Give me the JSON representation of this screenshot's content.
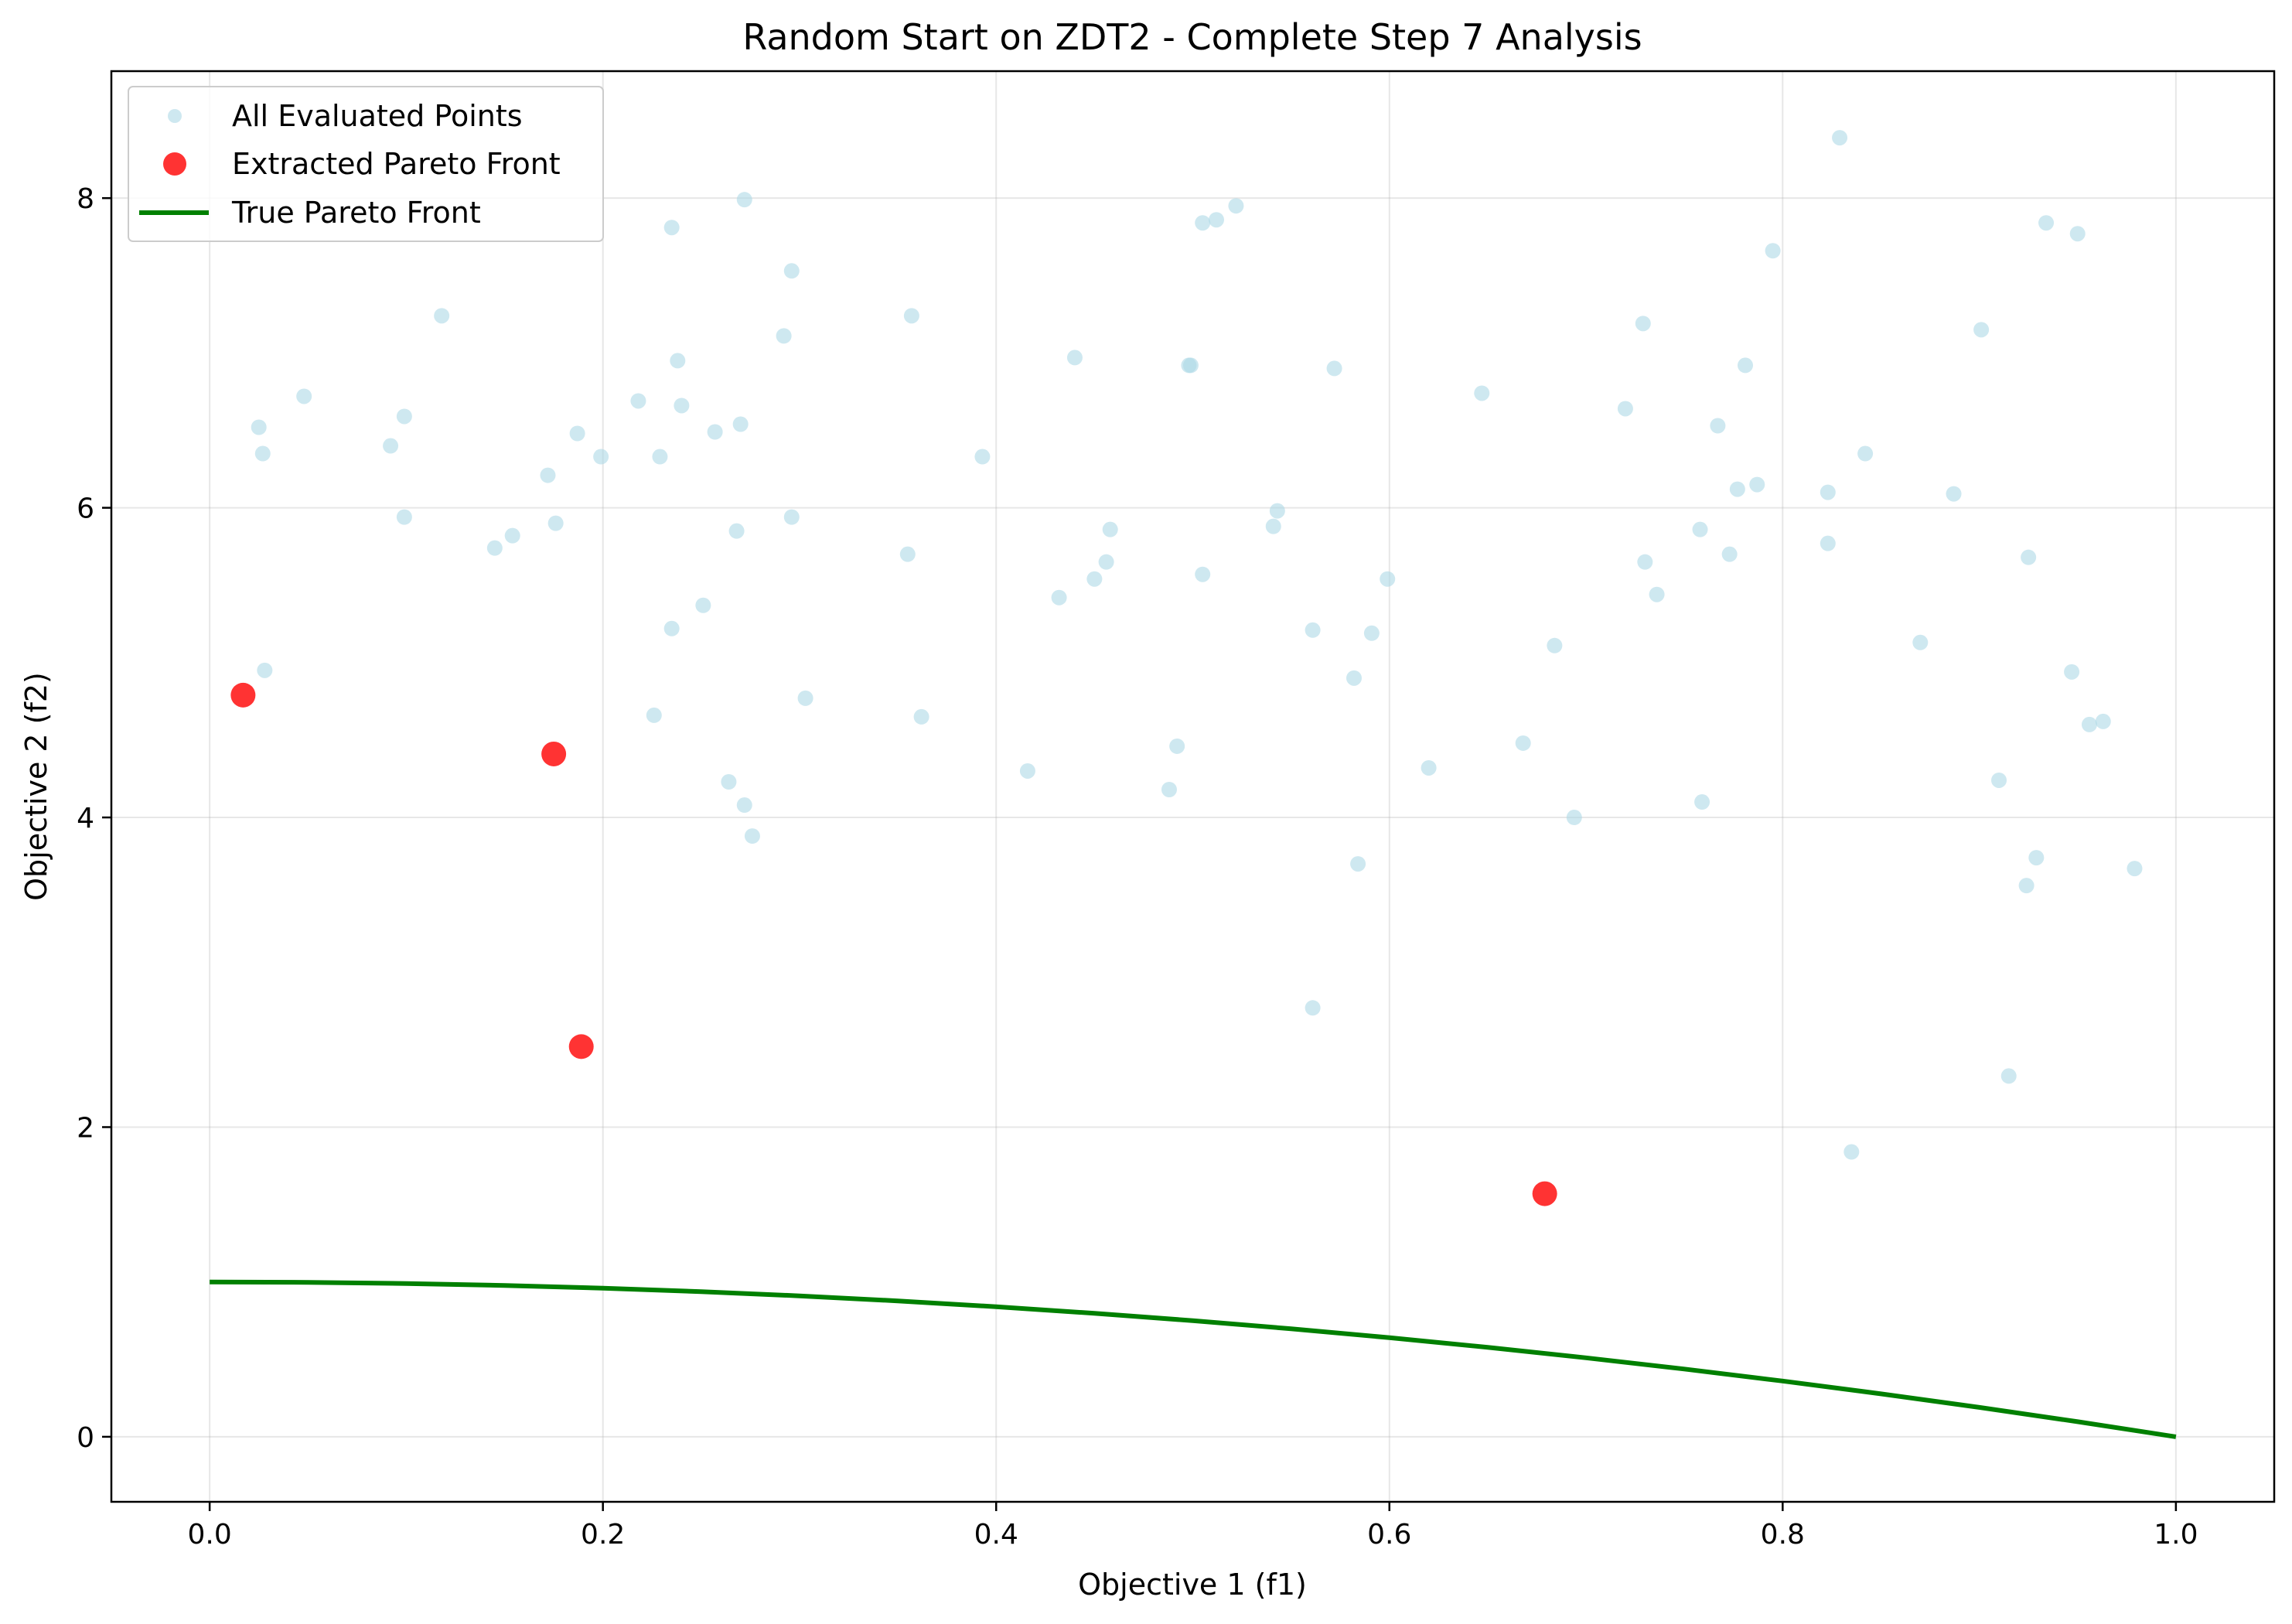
{
  "chart_data": {
    "type": "scatter",
    "title": "Random Start on ZDT2 - Complete Step 7 Analysis",
    "xlabel": "Objective 1 (f1)",
    "ylabel": "Objective 2 (f2)",
    "xlim": [
      -0.05,
      1.05
    ],
    "ylim": [
      -0.42,
      8.82
    ],
    "x_ticks": [
      0.0,
      0.2,
      0.4,
      0.6,
      0.8,
      1.0
    ],
    "x_tick_labels": [
      "0.0",
      "0.2",
      "0.4",
      "0.6",
      "0.8",
      "1.0"
    ],
    "y_ticks": [
      0,
      2,
      4,
      6,
      8
    ],
    "y_tick_labels": [
      "0",
      "2",
      "4",
      "6",
      "8"
    ],
    "grid": true,
    "legend_position": "top-left",
    "series": [
      {
        "name": "All Evaluated Points",
        "kind": "scatter",
        "color": "#add8e6",
        "x": [
          0.025,
          0.027,
          0.028,
          0.048,
          0.092,
          0.099,
          0.099,
          0.118,
          0.145,
          0.154,
          0.172,
          0.176,
          0.187,
          0.199,
          0.218,
          0.226,
          0.229,
          0.235,
          0.235,
          0.238,
          0.24,
          0.251,
          0.257,
          0.264,
          0.268,
          0.27,
          0.272,
          0.272,
          0.276,
          0.292,
          0.296,
          0.296,
          0.303,
          0.355,
          0.357,
          0.362,
          0.393,
          0.416,
          0.432,
          0.44,
          0.45,
          0.456,
          0.458,
          0.488,
          0.492,
          0.498,
          0.499,
          0.505,
          0.505,
          0.512,
          0.522,
          0.541,
          0.543,
          0.561,
          0.561,
          0.572,
          0.582,
          0.584,
          0.591,
          0.599,
          0.62,
          0.647,
          0.668,
          0.684,
          0.694,
          0.72,
          0.729,
          0.73,
          0.736,
          0.758,
          0.759,
          0.767,
          0.773,
          0.777,
          0.781,
          0.787,
          0.795,
          0.823,
          0.823,
          0.829,
          0.835,
          0.842,
          0.87,
          0.887,
          0.901,
          0.91,
          0.915,
          0.924,
          0.925,
          0.929,
          0.934,
          0.947,
          0.95,
          0.956,
          0.963,
          0.979
        ],
        "y": [
          6.52,
          6.35,
          4.95,
          6.72,
          6.4,
          6.59,
          5.94,
          7.24,
          5.74,
          5.82,
          6.21,
          5.9,
          6.48,
          6.33,
          6.69,
          4.66,
          6.33,
          7.81,
          5.22,
          6.95,
          6.66,
          5.37,
          6.49,
          4.23,
          5.85,
          6.54,
          4.08,
          7.99,
          3.88,
          7.11,
          5.94,
          7.53,
          4.77,
          5.7,
          7.24,
          4.65,
          6.33,
          4.3,
          5.42,
          6.97,
          5.54,
          5.65,
          5.86,
          4.18,
          4.46,
          6.92,
          6.92,
          7.84,
          5.57,
          7.86,
          7.95,
          5.88,
          5.98,
          2.77,
          5.21,
          6.9,
          4.9,
          3.7,
          5.19,
          5.54,
          4.32,
          6.74,
          4.48,
          5.11,
          4.0,
          6.64,
          7.19,
          5.65,
          5.44,
          5.86,
          4.1,
          6.53,
          5.7,
          6.12,
          6.92,
          6.15,
          7.66,
          6.1,
          5.77,
          8.39,
          1.84,
          6.35,
          5.13,
          6.09,
          7.15,
          4.24,
          2.33,
          3.56,
          5.68,
          3.74,
          7.84,
          4.94,
          7.77,
          4.6,
          4.62,
          3.67
        ]
      },
      {
        "name": "Extracted Pareto Front",
        "kind": "scatter",
        "color": "#ff0000",
        "x": [
          0.017,
          0.175,
          0.189,
          0.679
        ],
        "y": [
          4.79,
          4.41,
          2.52,
          1.57
        ]
      },
      {
        "name": "True Pareto Front",
        "kind": "line",
        "color": "#008000",
        "x": [
          0.0,
          0.05,
          0.1,
          0.15,
          0.2,
          0.25,
          0.3,
          0.35,
          0.4,
          0.45,
          0.5,
          0.55,
          0.6,
          0.65,
          0.7,
          0.75,
          0.8,
          0.85,
          0.9,
          0.95,
          1.0
        ],
        "y": [
          1.0,
          0.9975,
          0.99,
          0.9775,
          0.96,
          0.9375,
          0.91,
          0.8775,
          0.84,
          0.7975,
          0.75,
          0.6975,
          0.64,
          0.5775,
          0.51,
          0.4375,
          0.36,
          0.2775,
          0.19,
          0.0975,
          0.0
        ]
      }
    ]
  }
}
